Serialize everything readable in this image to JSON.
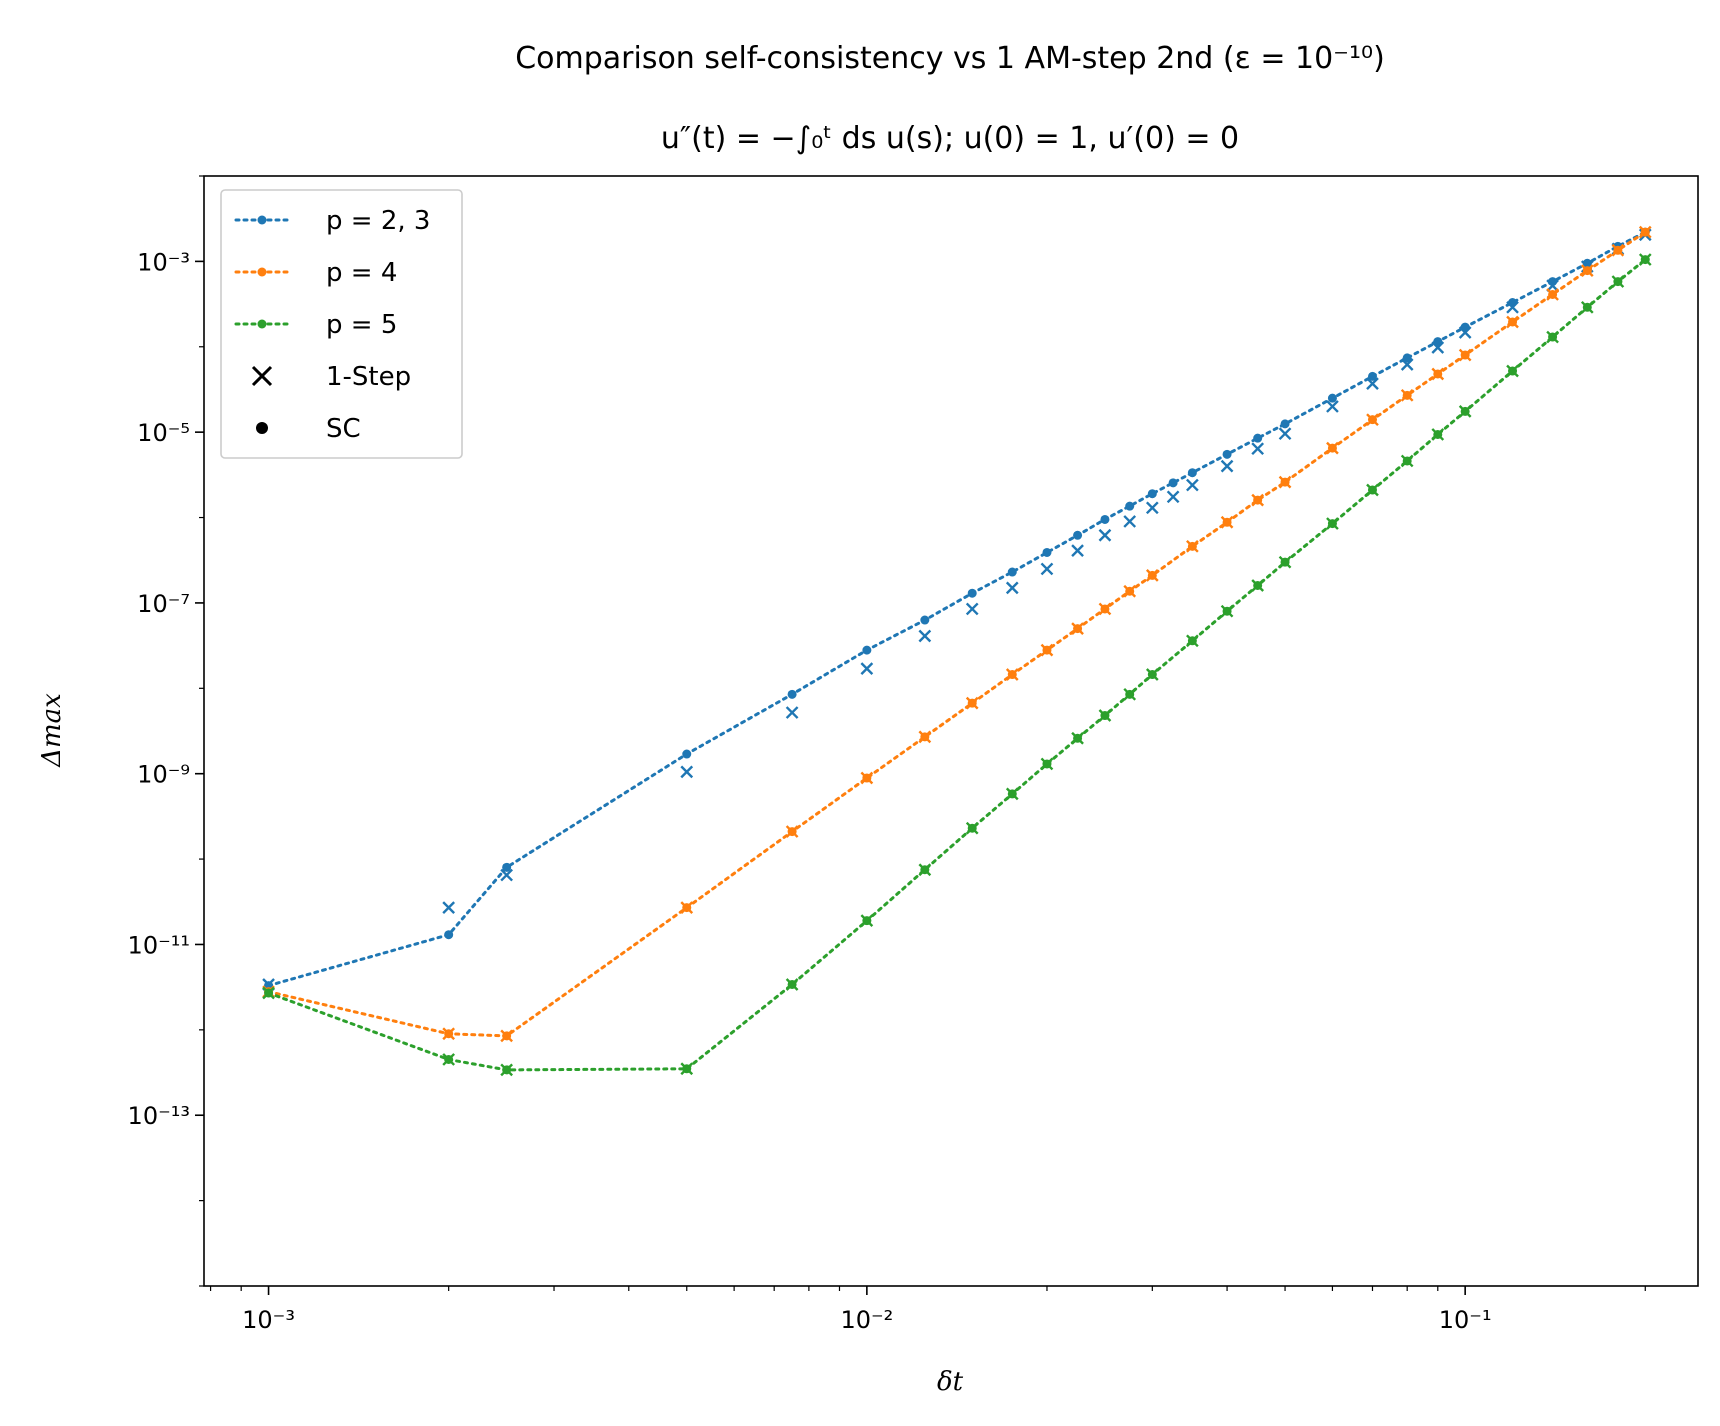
{
  "chart_data": {
    "type": "line",
    "title": "Comparison self-consistency vs 1 AM-step 2nd (ε = 10⁻¹⁰)",
    "subtitle": "u″(t) = −∫₀ᵗ ds u(s);    u(0) = 1, u′(0) = 0",
    "xlabel": "δt",
    "ylabel": "Δmax",
    "xscale": "log",
    "yscale": "log",
    "xlim": [
      0.00078,
      0.245
    ],
    "ylim": [
      1e-15,
      0.01
    ],
    "x_ticks": [
      {
        "value": 0.001,
        "label": "10⁻³"
      },
      {
        "value": 0.01,
        "label": "10⁻²"
      },
      {
        "value": 0.1,
        "label": "10⁻¹"
      }
    ],
    "y_ticks": [
      {
        "value": 0.001,
        "label": "10⁻³"
      },
      {
        "value": 1e-05,
        "label": "10⁻⁵"
      },
      {
        "value": 1e-07,
        "label": "10⁻⁷"
      },
      {
        "value": 1e-09,
        "label": "10⁻⁹"
      },
      {
        "value": 1e-11,
        "label": "10⁻¹¹"
      },
      {
        "value": 1e-13,
        "label": "10⁻¹³"
      }
    ],
    "grid": false,
    "legend_position": "top-left",
    "legend": [
      {
        "label": "p = 2, 3",
        "kind": "line",
        "color": "#1f77b4"
      },
      {
        "label": "p = 4",
        "kind": "line",
        "color": "#ff7f0e"
      },
      {
        "label": "p = 5",
        "kind": "line",
        "color": "#2ca02c"
      },
      {
        "label": "1-Step",
        "kind": "x-marker",
        "color": "#000000"
      },
      {
        "label": "SC",
        "kind": "dot-marker",
        "color": "#000000"
      }
    ],
    "series": [
      {
        "color": "#1f77b4",
        "points": [
          {
            "x": 0.001,
            "sc": 3.3e-12,
            "step": 3.4e-12
          },
          {
            "x": 0.002,
            "sc": 1.3e-11,
            "step": 2.7e-11
          },
          {
            "x": 0.0025,
            "sc": 8e-11,
            "step": 6.5e-11
          },
          {
            "x": 0.005,
            "sc": 1.7e-09,
            "step": 1.05e-09
          },
          {
            "x": 0.0075,
            "sc": 8.5e-09,
            "step": 5.2e-09
          },
          {
            "x": 0.01,
            "sc": 2.8e-08,
            "step": 1.7e-08
          },
          {
            "x": 0.0125,
            "sc": 6.3e-08,
            "step": 4.1e-08
          },
          {
            "x": 0.015,
            "sc": 1.3e-07,
            "step": 8.5e-08
          },
          {
            "x": 0.0175,
            "sc": 2.3e-07,
            "step": 1.5e-07
          },
          {
            "x": 0.02,
            "sc": 3.9e-07,
            "step": 2.5e-07
          },
          {
            "x": 0.0225,
            "sc": 6.2e-07,
            "step": 4.1e-07
          },
          {
            "x": 0.025,
            "sc": 9.5e-07,
            "step": 6.2e-07
          },
          {
            "x": 0.0275,
            "sc": 1.36e-06,
            "step": 9e-07
          },
          {
            "x": 0.03,
            "sc": 1.9e-06,
            "step": 1.3e-06
          },
          {
            "x": 0.0325,
            "sc": 2.55e-06,
            "step": 1.75e-06
          },
          {
            "x": 0.035,
            "sc": 3.35e-06,
            "step": 2.4e-06
          },
          {
            "x": 0.04,
            "sc": 5.5e-06,
            "step": 4e-06
          },
          {
            "x": 0.045,
            "sc": 8.5e-06,
            "step": 6.4e-06
          },
          {
            "x": 0.05,
            "sc": 1.25e-05,
            "step": 9.6e-06
          },
          {
            "x": 0.06,
            "sc": 2.5e-05,
            "step": 2e-05
          },
          {
            "x": 0.07,
            "sc": 4.5e-05,
            "step": 3.7e-05
          },
          {
            "x": 0.08,
            "sc": 7.4e-05,
            "step": 6.2e-05
          },
          {
            "x": 0.09,
            "sc": 0.000115,
            "step": 9.8e-05
          },
          {
            "x": 0.1,
            "sc": 0.00017,
            "step": 0.000147
          },
          {
            "x": 0.12,
            "sc": 0.00033,
            "step": 0.00029
          },
          {
            "x": 0.14,
            "sc": 0.00058,
            "step": 0.00052
          },
          {
            "x": 0.16,
            "sc": 0.00095,
            "step": 0.00087
          },
          {
            "x": 0.18,
            "sc": 0.0015,
            "step": 0.0014
          },
          {
            "x": 0.2,
            "sc": 0.0022,
            "step": 0.00205
          }
        ]
      },
      {
        "color": "#ff7f0e",
        "points": [
          {
            "x": 0.001,
            "sc": 2.8e-12,
            "step": 2.8e-12
          },
          {
            "x": 0.002,
            "sc": 9e-13,
            "step": 9e-13
          },
          {
            "x": 0.0025,
            "sc": 8.5e-13,
            "step": 8.5e-13
          },
          {
            "x": 0.005,
            "sc": 2.7e-11,
            "step": 2.7e-11
          },
          {
            "x": 0.0075,
            "sc": 2.1e-10,
            "step": 2.1e-10
          },
          {
            "x": 0.01,
            "sc": 8.9e-10,
            "step": 8.9e-10
          },
          {
            "x": 0.0125,
            "sc": 2.7e-09,
            "step": 2.7e-09
          },
          {
            "x": 0.015,
            "sc": 6.7e-09,
            "step": 6.7e-09
          },
          {
            "x": 0.0175,
            "sc": 1.45e-08,
            "step": 1.45e-08
          },
          {
            "x": 0.02,
            "sc": 2.8e-08,
            "step": 2.8e-08
          },
          {
            "x": 0.0225,
            "sc": 5e-08,
            "step": 5e-08
          },
          {
            "x": 0.025,
            "sc": 8.5e-08,
            "step": 8.5e-08
          },
          {
            "x": 0.0275,
            "sc": 1.37e-07,
            "step": 1.37e-07
          },
          {
            "x": 0.03,
            "sc": 2.1e-07,
            "step": 2.1e-07
          },
          {
            "x": 0.035,
            "sc": 4.6e-07,
            "step": 4.6e-07
          },
          {
            "x": 0.04,
            "sc": 8.8e-07,
            "step": 8.8e-07
          },
          {
            "x": 0.045,
            "sc": 1.6e-06,
            "step": 1.6e-06
          },
          {
            "x": 0.05,
            "sc": 2.6e-06,
            "step": 2.6e-06
          },
          {
            "x": 0.06,
            "sc": 6.5e-06,
            "step": 6.5e-06
          },
          {
            "x": 0.07,
            "sc": 1.4e-05,
            "step": 1.4e-05
          },
          {
            "x": 0.08,
            "sc": 2.7e-05,
            "step": 2.7e-05
          },
          {
            "x": 0.09,
            "sc": 4.8e-05,
            "step": 4.8e-05
          },
          {
            "x": 0.1,
            "sc": 8e-05,
            "step": 8e-05
          },
          {
            "x": 0.12,
            "sc": 0.000195,
            "step": 0.000195
          },
          {
            "x": 0.14,
            "sc": 0.00041,
            "step": 0.00041
          },
          {
            "x": 0.16,
            "sc": 0.00078,
            "step": 0.00078
          },
          {
            "x": 0.18,
            "sc": 0.00135,
            "step": 0.00135
          },
          {
            "x": 0.2,
            "sc": 0.0022,
            "step": 0.0022
          }
        ]
      },
      {
        "color": "#2ca02c",
        "points": [
          {
            "x": 0.001,
            "sc": 2.7e-12,
            "step": 2.7e-12
          },
          {
            "x": 0.002,
            "sc": 4.5e-13,
            "step": 4.5e-13
          },
          {
            "x": 0.0025,
            "sc": 3.4e-13,
            "step": 3.4e-13
          },
          {
            "x": 0.005,
            "sc": 3.5e-13,
            "step": 3.5e-13
          },
          {
            "x": 0.0075,
            "sc": 3.4e-12,
            "step": 3.4e-12
          },
          {
            "x": 0.01,
            "sc": 1.9e-11,
            "step": 1.9e-11
          },
          {
            "x": 0.0125,
            "sc": 7.5e-11,
            "step": 7.5e-11
          },
          {
            "x": 0.015,
            "sc": 2.3e-10,
            "step": 2.3e-10
          },
          {
            "x": 0.0175,
            "sc": 5.8e-10,
            "step": 5.8e-10
          },
          {
            "x": 0.02,
            "sc": 1.3e-09,
            "step": 1.3e-09
          },
          {
            "x": 0.0225,
            "sc": 2.6e-09,
            "step": 2.6e-09
          },
          {
            "x": 0.025,
            "sc": 4.8e-09,
            "step": 4.8e-09
          },
          {
            "x": 0.0275,
            "sc": 8.5e-09,
            "step": 8.5e-09
          },
          {
            "x": 0.03,
            "sc": 1.45e-08,
            "step": 1.45e-08
          },
          {
            "x": 0.035,
            "sc": 3.6e-08,
            "step": 3.6e-08
          },
          {
            "x": 0.04,
            "sc": 8e-08,
            "step": 8e-08
          },
          {
            "x": 0.045,
            "sc": 1.6e-07,
            "step": 1.6e-07
          },
          {
            "x": 0.05,
            "sc": 3e-07,
            "step": 3e-07
          },
          {
            "x": 0.06,
            "sc": 8.5e-07,
            "step": 8.5e-07
          },
          {
            "x": 0.07,
            "sc": 2.1e-06,
            "step": 2.1e-06
          },
          {
            "x": 0.08,
            "sc": 4.6e-06,
            "step": 4.6e-06
          },
          {
            "x": 0.09,
            "sc": 9.4e-06,
            "step": 9.4e-06
          },
          {
            "x": 0.1,
            "sc": 1.75e-05,
            "step": 1.75e-05
          },
          {
            "x": 0.12,
            "sc": 5.2e-05,
            "step": 5.2e-05
          },
          {
            "x": 0.14,
            "sc": 0.00013,
            "step": 0.00013
          },
          {
            "x": 0.16,
            "sc": 0.00029,
            "step": 0.00029
          },
          {
            "x": 0.18,
            "sc": 0.00058,
            "step": 0.00058
          },
          {
            "x": 0.2,
            "sc": 0.00105,
            "step": 0.00105
          }
        ]
      }
    ]
  }
}
